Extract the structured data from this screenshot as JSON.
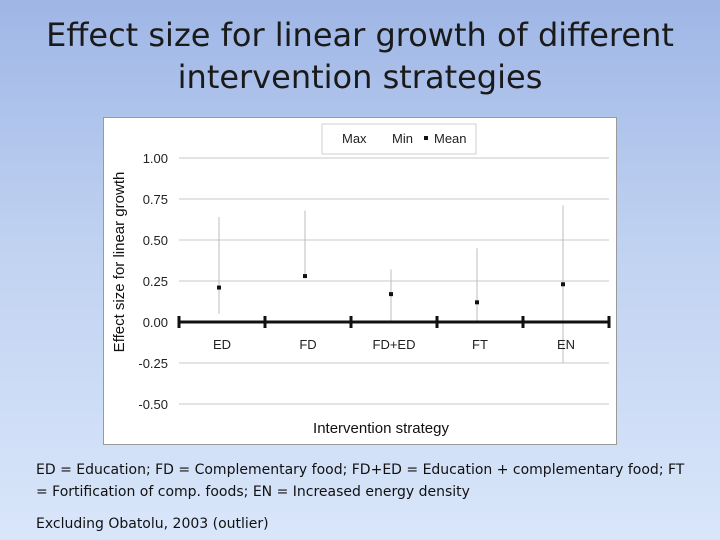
{
  "slide": {
    "title_line1": "Effect size for linear growth of different",
    "title_line2": "intervention strategies",
    "footnote_abbrev": "ED = Education; FD = Complementary food; FD+ED = Education + complementary food; FT = Fortification of comp. foods; EN = Increased energy density",
    "footnote_exclusion": "Excluding Obatolu, 2003 (outlier)"
  },
  "chart_data": {
    "type": "scatter",
    "subtype": "high-low-mean",
    "title": "",
    "xlabel": "Intervention strategy",
    "ylabel": "Effect size for linear growth",
    "categories": [
      "ED",
      "FD",
      "FD+ED",
      "FT",
      "EN"
    ],
    "series": [
      {
        "name": "Max",
        "values": [
          0.64,
          0.68,
          0.32,
          0.45,
          0.71
        ]
      },
      {
        "name": "Min",
        "values": [
          0.05,
          0.28,
          0.0,
          0.0,
          -0.25
        ]
      },
      {
        "name": "Mean",
        "values": [
          0.21,
          0.28,
          0.17,
          0.12,
          0.23
        ]
      }
    ],
    "ylim": [
      -0.5,
      1.0
    ],
    "yticks": [
      1.0,
      0.75,
      0.5,
      0.25,
      0.0,
      -0.25,
      -0.5
    ],
    "ytick_labels": [
      "1.00",
      "0.75",
      "0.50",
      "0.25",
      "0.00",
      "-0.25",
      "-0.50"
    ],
    "grid": true,
    "legend_position": "top-center",
    "colors": {
      "range_line": "#bdbdbd",
      "mean_marker": "#111111",
      "axis": "#111111",
      "grid": "#c8c8c8"
    }
  }
}
